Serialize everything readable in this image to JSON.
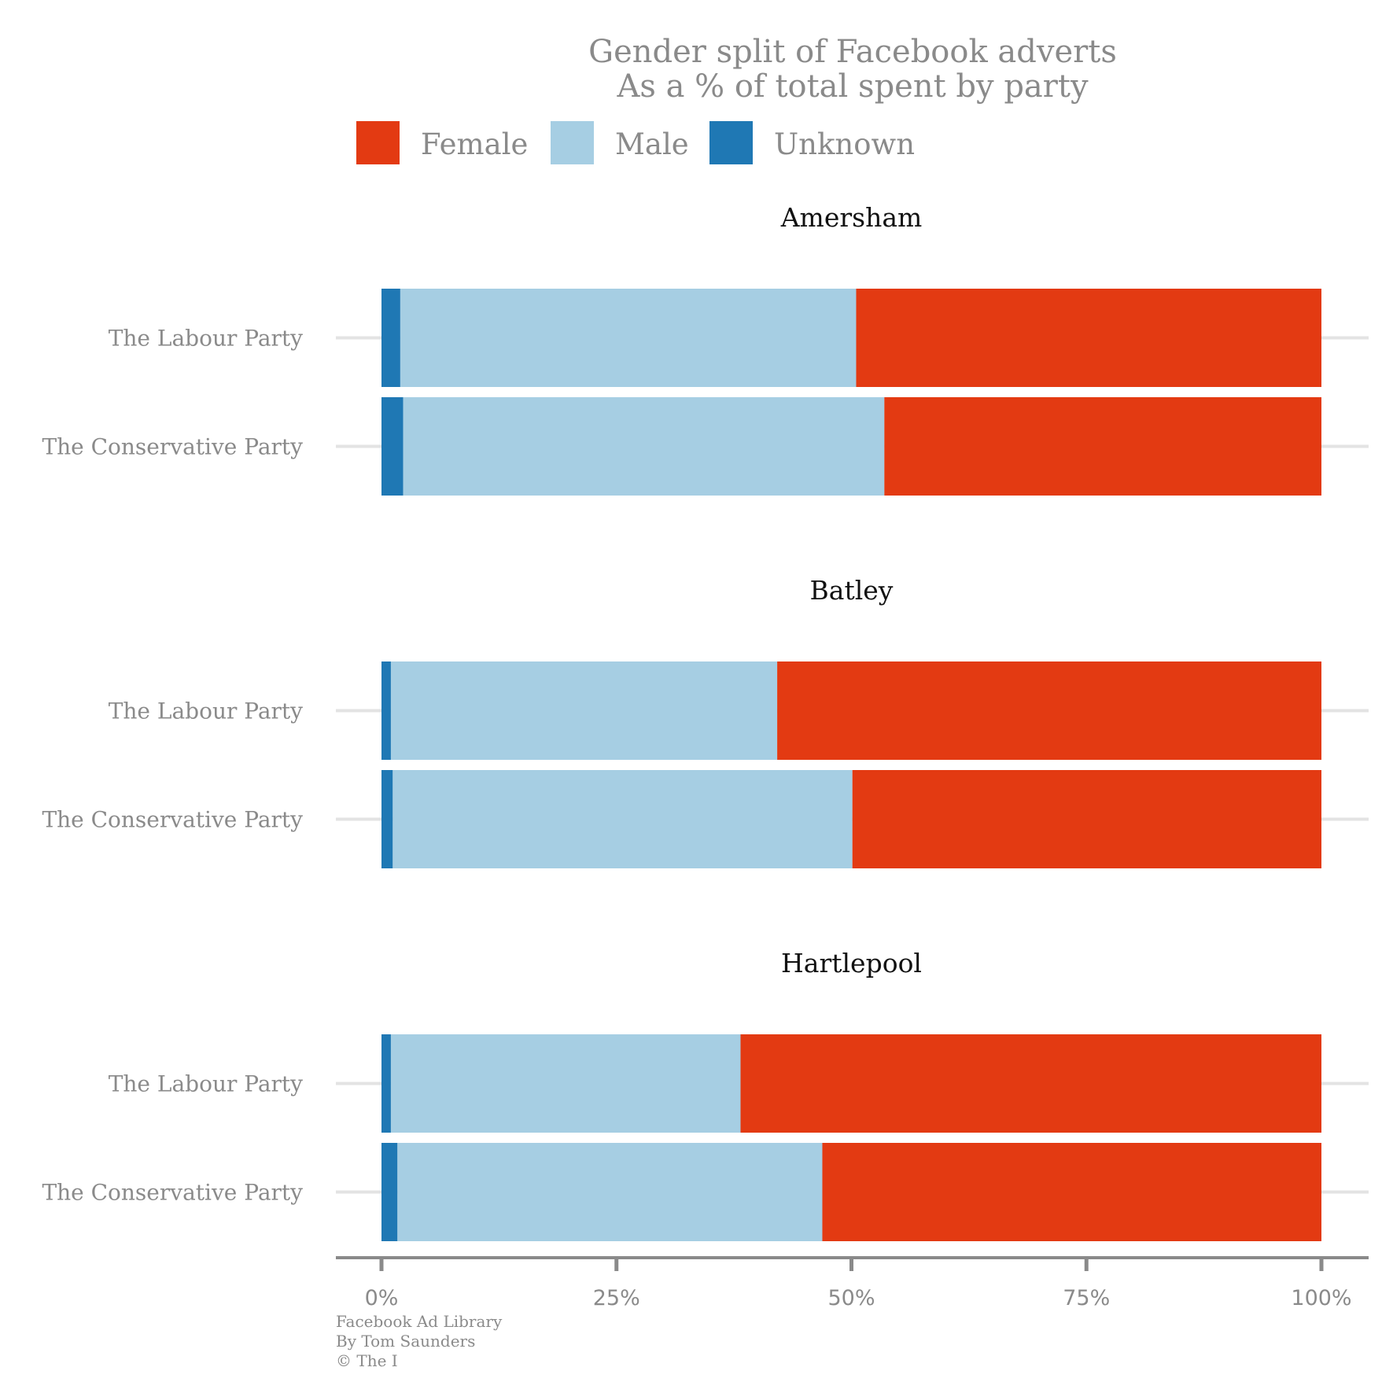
{
  "chart_data": {
    "type": "bar",
    "orientation": "horizontal",
    "stacked": true,
    "title": "Gender split of Facebook adverts",
    "subtitle": "As a % of total spent by party",
    "legend": {
      "placement": "top",
      "entries": [
        {
          "name": "Female",
          "color": "#e33a12"
        },
        {
          "name": "Male",
          "color": "#a6cee3"
        },
        {
          "name": "Unknown",
          "color": "#1f78b4"
        }
      ]
    },
    "stack_order": [
      "Unknown",
      "Male",
      "Female"
    ],
    "xlim": [
      0,
      100
    ],
    "x_ticks": [
      {
        "value": 0,
        "label": "0%"
      },
      {
        "value": 25,
        "label": "25%"
      },
      {
        "value": 50,
        "label": "50%"
      },
      {
        "value": 75,
        "label": "75%"
      },
      {
        "value": 100,
        "label": "100%"
      }
    ],
    "grid": false,
    "facets": [
      {
        "title": "Amersham",
        "rows": [
          {
            "category": "The Labour Party",
            "Unknown": 2.0,
            "Male": 48.5,
            "Female": 49.5
          },
          {
            "category": "The Conservative Party",
            "Unknown": 2.3,
            "Male": 51.2,
            "Female": 46.5
          }
        ]
      },
      {
        "title": "Batley",
        "rows": [
          {
            "category": "The Labour Party",
            "Unknown": 1.0,
            "Male": 41.1,
            "Female": 57.9
          },
          {
            "category": "The Conservative Party",
            "Unknown": 1.2,
            "Male": 48.9,
            "Female": 49.9
          }
        ]
      },
      {
        "title": "Hartlepool",
        "rows": [
          {
            "category": "The Labour Party",
            "Unknown": 1.0,
            "Male": 37.2,
            "Female": 61.8
          },
          {
            "category": "The Conservative Party",
            "Unknown": 1.7,
            "Male": 45.2,
            "Female": 53.1
          }
        ]
      }
    ],
    "caption": [
      "Facebook Ad Library",
      "By Tom Saunders",
      "© The I"
    ]
  }
}
